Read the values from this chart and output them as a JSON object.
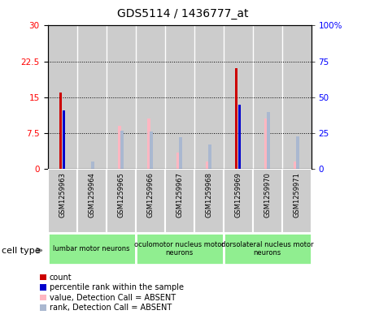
{
  "title": "GDS5114 / 1436777_at",
  "samples": [
    "GSM1259963",
    "GSM1259964",
    "GSM1259965",
    "GSM1259966",
    "GSM1259967",
    "GSM1259968",
    "GSM1259969",
    "GSM1259970",
    "GSM1259971"
  ],
  "count_values": [
    16.0,
    0.3,
    0.3,
    0.3,
    0.3,
    0.3,
    21.0,
    0.3,
    0.3
  ],
  "rank_values": [
    41.0,
    0.0,
    0.0,
    0.0,
    0.0,
    0.0,
    45.0,
    0.0,
    0.0
  ],
  "absent_value_values": [
    0.0,
    0.0,
    9.0,
    10.5,
    3.5,
    1.5,
    0.0,
    10.5,
    1.5
  ],
  "absent_rank_values": [
    0.0,
    5.0,
    27.0,
    26.0,
    22.0,
    17.0,
    0.0,
    40.0,
    23.0
  ],
  "ylim_left": [
    0,
    30
  ],
  "ylim_right": [
    0,
    100
  ],
  "yticks_left": [
    0,
    7.5,
    15,
    22.5,
    30
  ],
  "yticks_right": [
    0,
    25,
    50,
    75,
    100
  ],
  "ytick_labels_left": [
    "0",
    "7.5",
    "15",
    "22.5",
    "30"
  ],
  "ytick_labels_right": [
    "0",
    "25",
    "50",
    "75",
    "100%"
  ],
  "groups": [
    {
      "label": "lumbar motor neurons",
      "start": 0,
      "end": 3
    },
    {
      "label": "oculomotor nucleus motor\nneurons",
      "start": 3,
      "end": 6
    },
    {
      "label": "dorsolateral nucleus motor\nneurons",
      "start": 6,
      "end": 9
    }
  ],
  "color_count": "#cc0000",
  "color_rank": "#0000cc",
  "color_absent_value": "#ffb6c1",
  "color_absent_rank": "#aab8d0",
  "bar_bg_color": "#cccccc",
  "plot_bg_color": "#ffffff",
  "cell_type_bg": "#90ee90",
  "legend_labels": [
    "count",
    "percentile rank within the sample",
    "value, Detection Call = ABSENT",
    "rank, Detection Call = ABSENT"
  ],
  "legend_colors": [
    "#cc0000",
    "#0000cc",
    "#ffb6c1",
    "#aab8d0"
  ]
}
